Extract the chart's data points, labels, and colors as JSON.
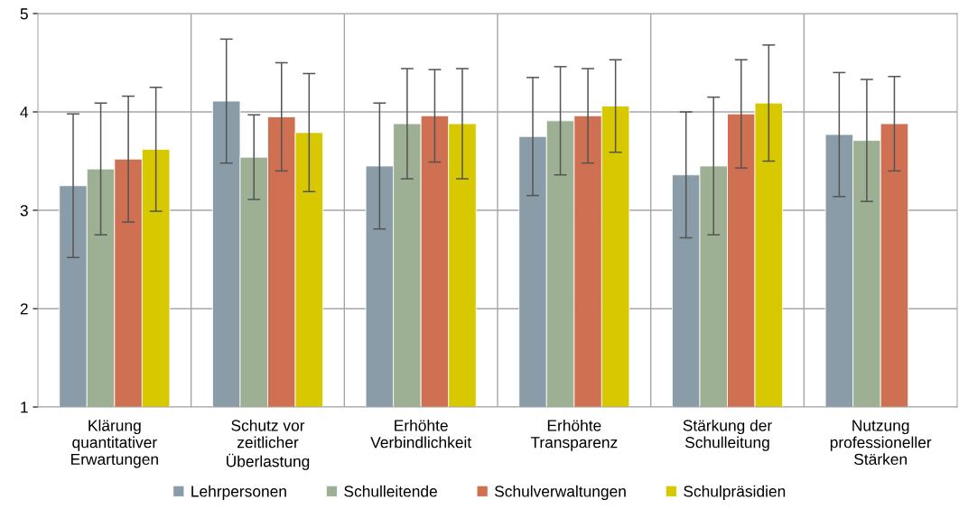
{
  "chart_data": {
    "type": "bar",
    "categories": [
      "Klärung\nquantitativer\nErwartungen",
      "Schutz vor\nzeitlicher\nÜberlastung",
      "Erhöhte\nVerbindlichkeit",
      "Erhöhte\nTransparenz",
      "Stärkung der\nSchulleitung",
      "Nutzung\nprofessioneller\nStärken"
    ],
    "series": [
      {
        "name": "Lehrpersonen",
        "color": "#8a9ca8",
        "values": [
          3.25,
          4.11,
          3.45,
          3.75,
          3.36,
          3.77
        ],
        "errors": [
          0.73,
          0.63,
          0.64,
          0.6,
          0.64,
          0.63
        ]
      },
      {
        "name": "Schulleitende",
        "color": "#9eb094",
        "values": [
          3.42,
          3.54,
          3.88,
          3.91,
          3.45,
          3.71
        ],
        "errors": [
          0.67,
          0.43,
          0.56,
          0.55,
          0.7,
          0.62
        ]
      },
      {
        "name": "Schulverwaltungen",
        "color": "#d07053",
        "values": [
          3.52,
          3.95,
          3.96,
          3.96,
          3.98,
          3.88
        ],
        "errors": [
          0.64,
          0.55,
          0.47,
          0.48,
          0.55,
          0.48
        ]
      },
      {
        "name": "Schulpräsidien",
        "color": "#d8c800",
        "values": [
          3.62,
          3.79,
          3.88,
          4.06,
          4.09,
          null
        ],
        "errors": [
          0.63,
          0.6,
          0.56,
          0.47,
          0.59,
          null
        ]
      }
    ],
    "ylim": [
      1,
      5
    ],
    "yticks": [
      1,
      2,
      3,
      4,
      5
    ],
    "grid": true,
    "legend": "bottom"
  }
}
